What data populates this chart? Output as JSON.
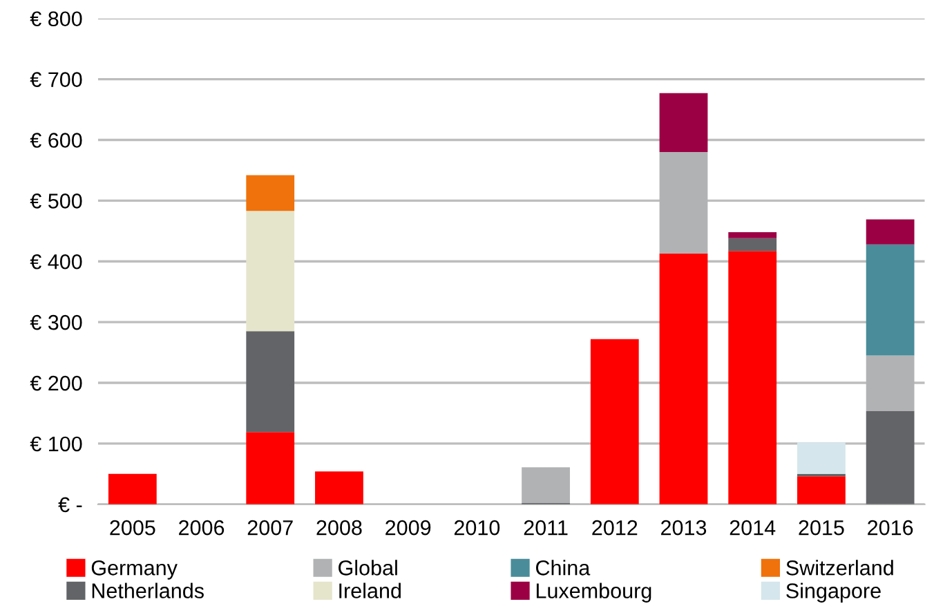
{
  "chart_data": {
    "type": "bar",
    "stacked": true,
    "categories": [
      "2005",
      "2006",
      "2007",
      "2008",
      "2009",
      "2010",
      "2011",
      "2012",
      "2013",
      "2014",
      "2015",
      "2016"
    ],
    "series": [
      {
        "name": "Germany",
        "color": "#ff0000",
        "values": [
          50,
          0,
          119,
          54,
          0,
          0,
          0,
          272,
          413,
          417,
          46,
          0
        ]
      },
      {
        "name": "Netherlands",
        "color": "#636467",
        "values": [
          0,
          0,
          166,
          0,
          0,
          0,
          2,
          0,
          0,
          21,
          4,
          154
        ]
      },
      {
        "name": "Global",
        "color": "#b1b2b4",
        "values": [
          0,
          0,
          0,
          0,
          0,
          0,
          59,
          0,
          167,
          0,
          0,
          91
        ]
      },
      {
        "name": "Ireland",
        "color": "#e5e5cc",
        "values": [
          0,
          0,
          198,
          0,
          0,
          0,
          0,
          0,
          0,
          0,
          0,
          0
        ]
      },
      {
        "name": "China",
        "color": "#4a8c9a",
        "values": [
          0,
          0,
          0,
          0,
          0,
          0,
          0,
          0,
          0,
          0,
          0,
          183
        ]
      },
      {
        "name": "Luxembourg",
        "color": "#9c0044",
        "values": [
          0,
          0,
          0,
          0,
          0,
          0,
          0,
          0,
          97,
          10,
          0,
          41
        ]
      },
      {
        "name": "Switzerland",
        "color": "#ef720c",
        "values": [
          0,
          0,
          59,
          0,
          0,
          0,
          0,
          0,
          0,
          0,
          0,
          0
        ]
      },
      {
        "name": "Singapore",
        "color": "#d5e6ec",
        "values": [
          0,
          0,
          0,
          0,
          0,
          0,
          0,
          0,
          0,
          0,
          52,
          0
        ]
      }
    ],
    "ylim": [
      0,
      800
    ],
    "yticks": [
      {
        "value": 0,
        "label": "€ -"
      },
      {
        "value": 100,
        "label": "€ 100"
      },
      {
        "value": 200,
        "label": "€ 200"
      },
      {
        "value": 300,
        "label": "€ 300"
      },
      {
        "value": 400,
        "label": "€ 400"
      },
      {
        "value": 500,
        "label": "€ 500"
      },
      {
        "value": 600,
        "label": "€ 600"
      },
      {
        "value": 700,
        "label": "€ 700"
      },
      {
        "value": 800,
        "label": "€ 800"
      }
    ],
    "grid": "y",
    "legend": "bottom"
  }
}
